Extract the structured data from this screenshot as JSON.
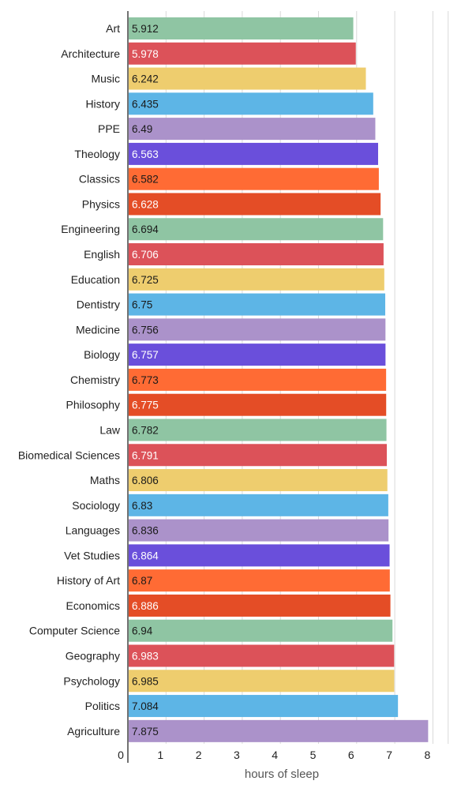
{
  "chart_data": {
    "type": "bar",
    "orientation": "horizontal",
    "xlabel": "hours of sleep",
    "xlim": [
      0,
      8.4
    ],
    "xticks": [
      0,
      1,
      2,
      3,
      4,
      5,
      6,
      7,
      8
    ],
    "grid": true,
    "categories": [
      "Art",
      "Architecture",
      "Music",
      "History",
      "PPE",
      "Theology",
      "Classics",
      "Physics",
      "Engineering",
      "English",
      "Education",
      "Dentistry",
      "Medicine",
      "Biology",
      "Chemistry",
      "Philosophy",
      "Law",
      "Biomedical Sciences",
      "Maths",
      "Sociology",
      "Languages",
      "Vet Studies",
      "History of Art",
      "Economics",
      "Computer Science",
      "Geography",
      "Psychology",
      "Politics",
      "Agriculture"
    ],
    "values": [
      5.912,
      5.978,
      6.242,
      6.435,
      6.49,
      6.563,
      6.582,
      6.628,
      6.694,
      6.706,
      6.725,
      6.75,
      6.756,
      6.757,
      6.773,
      6.775,
      6.782,
      6.791,
      6.806,
      6.83,
      6.836,
      6.864,
      6.87,
      6.886,
      6.94,
      6.983,
      6.985,
      7.084,
      7.875
    ],
    "value_labels": [
      "5.912",
      "5.978",
      "6.242",
      "6.435",
      "6.49",
      "6.563",
      "6.582",
      "6.628",
      "6.694",
      "6.706",
      "6.725",
      "6.75",
      "6.756",
      "6.757",
      "6.773",
      "6.775",
      "6.782",
      "6.791",
      "6.806",
      "6.83",
      "6.836",
      "6.864",
      "6.87",
      "6.886",
      "6.94",
      "6.983",
      "6.985",
      "7.084",
      "7.875"
    ],
    "palette": [
      "#8fc5a3",
      "#dc5259",
      "#eecd6e",
      "#5db5e6",
      "#ab92ca",
      "#6a4fdb",
      "#ff6b34",
      "#e44d26"
    ],
    "label_colors": [
      "#1a1a1a",
      "#ffffff",
      "#1a1a1a",
      "#1a1a1a",
      "#1a1a1a",
      "#ffffff",
      "#1a1a1a",
      "#ffffff"
    ]
  }
}
